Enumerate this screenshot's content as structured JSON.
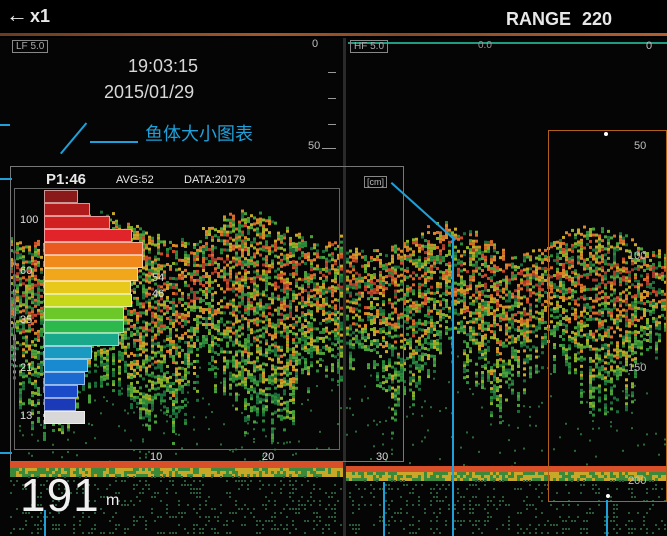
{
  "header": {
    "back_glyph": "←",
    "zoom_label": "x1",
    "range_label": "RANGE",
    "range_value": "220"
  },
  "left_panel": {
    "freq_label": "LF 5.0",
    "time": "19:03:15",
    "date": "2015/01/29",
    "depth_ticks": [
      "0",
      "50"
    ]
  },
  "right_panel": {
    "freq_label": "HF 5.0",
    "offset_label": "0.0",
    "right_scale": [
      "0",
      "50",
      "100",
      "150",
      "200"
    ]
  },
  "callout": {
    "text": "鱼体大小图表"
  },
  "histogram": {
    "point_label": "P1:46",
    "avg_label": "AVG:52",
    "data_label": "DATA:20179",
    "unit_label": "[cm]",
    "size_axis": [
      "100",
      "60",
      "35",
      "21",
      "13"
    ],
    "count_axis": [
      "10",
      "20",
      "30"
    ],
    "marker_upper": "54",
    "marker_lower": "46",
    "bars": [
      {
        "value": 0.2,
        "color": "#8a1a1a"
      },
      {
        "value": 0.27,
        "color": "#b01c1c"
      },
      {
        "value": 0.39,
        "color": "#d02020"
      },
      {
        "value": 0.52,
        "color": "#e0242a"
      },
      {
        "value": 0.58,
        "color": "#ea5a20"
      },
      {
        "value": 0.58,
        "color": "#f08a1a"
      },
      {
        "value": 0.55,
        "color": "#f0a81a"
      },
      {
        "value": 0.51,
        "color": "#e8c81a"
      },
      {
        "value": 0.52,
        "color": "#c8d81a"
      },
      {
        "value": 0.47,
        "color": "#6cc828"
      },
      {
        "value": 0.47,
        "color": "#2cb84a"
      },
      {
        "value": 0.44,
        "color": "#1aa88a"
      },
      {
        "value": 0.28,
        "color": "#1a9ac0"
      },
      {
        "value": 0.26,
        "color": "#1a8ad0"
      },
      {
        "value": 0.24,
        "color": "#1a6ad0"
      },
      {
        "value": 0.2,
        "color": "#1a4ac8"
      },
      {
        "value": 0.19,
        "color": "#1a3ab8"
      },
      {
        "value": 0.24,
        "color": "#d8d8d8"
      }
    ]
  },
  "depth_readout": {
    "value": "191",
    "unit": "m"
  },
  "colors": {
    "background": "#050505",
    "leader": "#1fa0d8",
    "target_box": "#b0601a",
    "range_bar": "#a3562a",
    "hf_bar": "#1f9c7f"
  }
}
